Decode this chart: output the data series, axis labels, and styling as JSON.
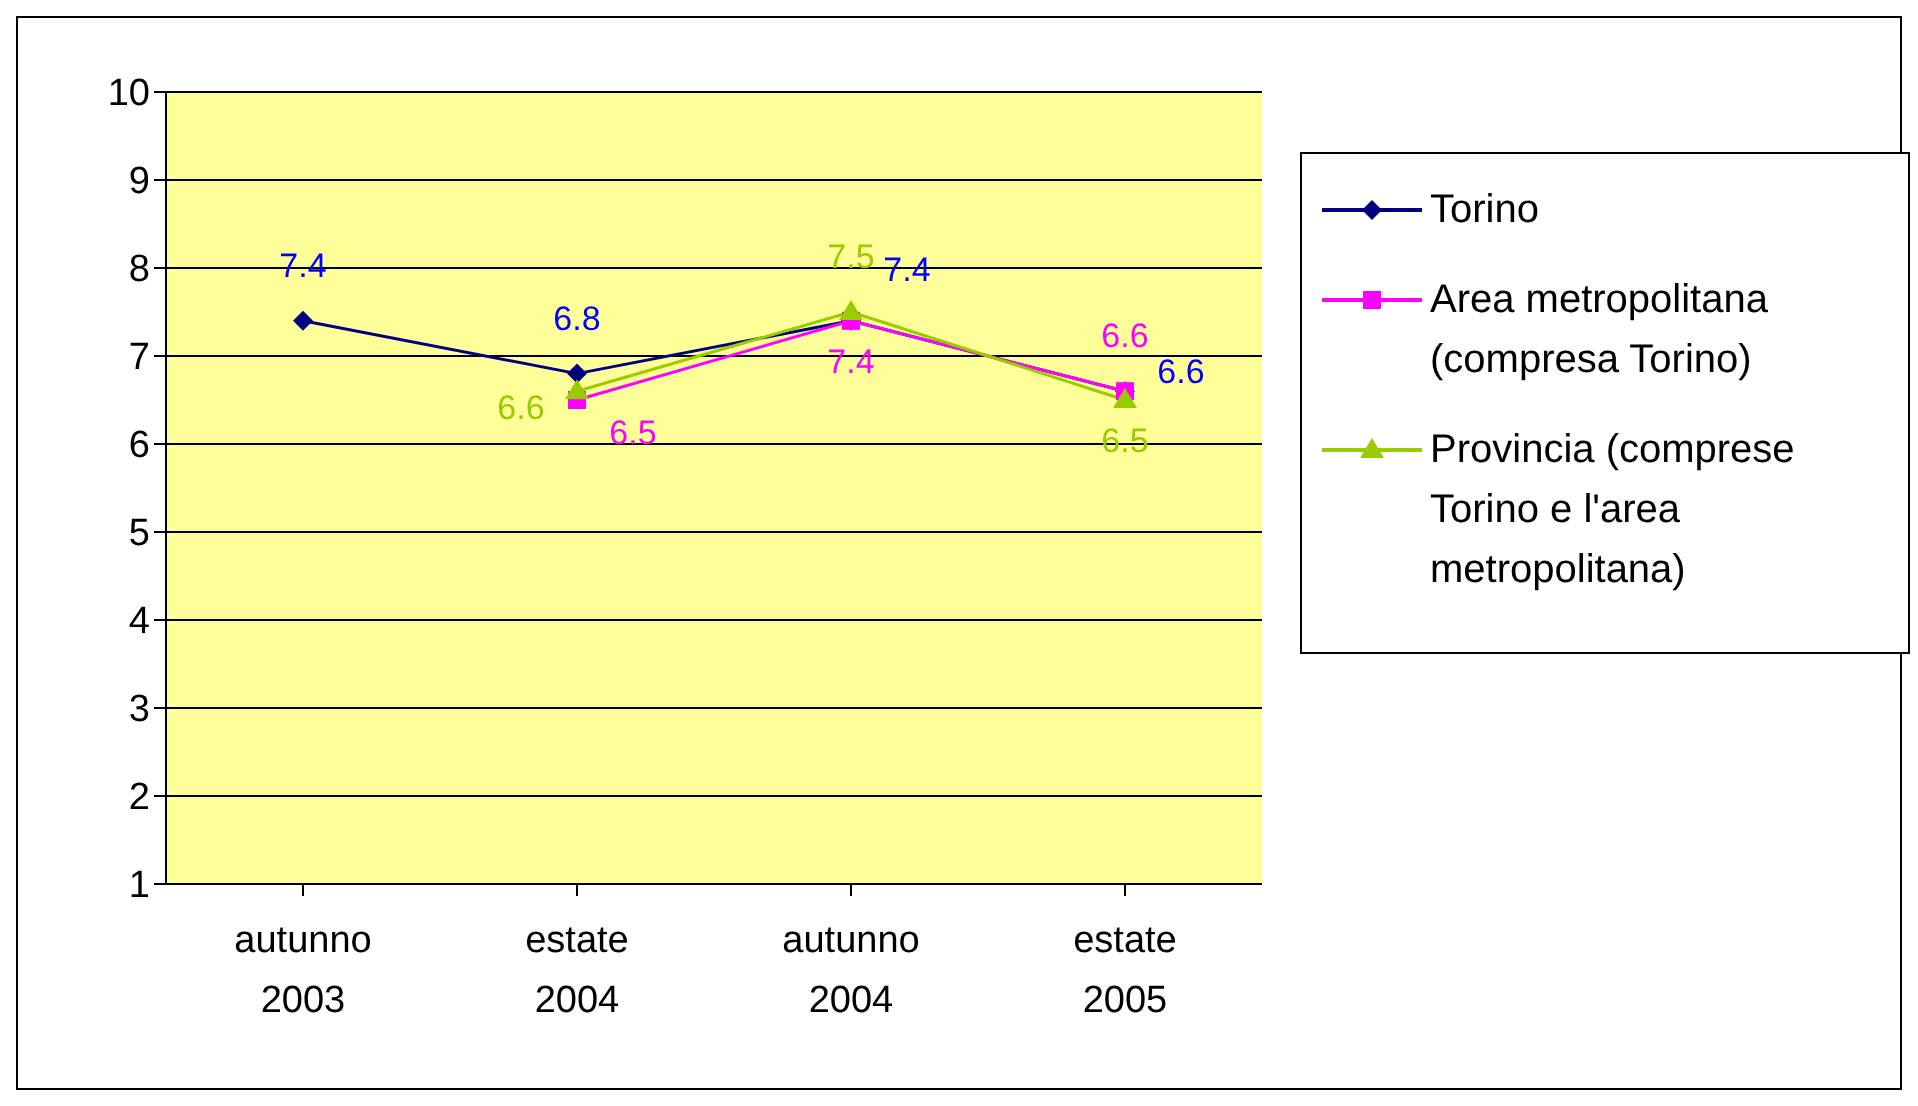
{
  "chart_data": {
    "type": "line",
    "categories": [
      "autunno 2003",
      "estate 2004",
      "autunno 2004",
      "estate 2005"
    ],
    "series": [
      {
        "name": "Torino",
        "color": "#000080",
        "marker": "diamond",
        "values": [
          7.4,
          6.8,
          7.4,
          6.6
        ]
      },
      {
        "name": "Area metropolitana (compresa Torino)",
        "color": "#ff00ff",
        "marker": "square",
        "values": [
          null,
          6.5,
          7.4,
          6.6
        ]
      },
      {
        "name": "Provincia (comprese Torino e l'area metropolitana)",
        "color": "#99cc00",
        "marker": "triangle",
        "values": [
          null,
          6.6,
          7.5,
          6.5
        ]
      }
    ],
    "ylim": [
      1,
      10
    ],
    "yticks": [
      1,
      2,
      3,
      4,
      5,
      6,
      7,
      8,
      9,
      10
    ],
    "grid": "y",
    "legend": "right",
    "data_labels": true
  }
}
